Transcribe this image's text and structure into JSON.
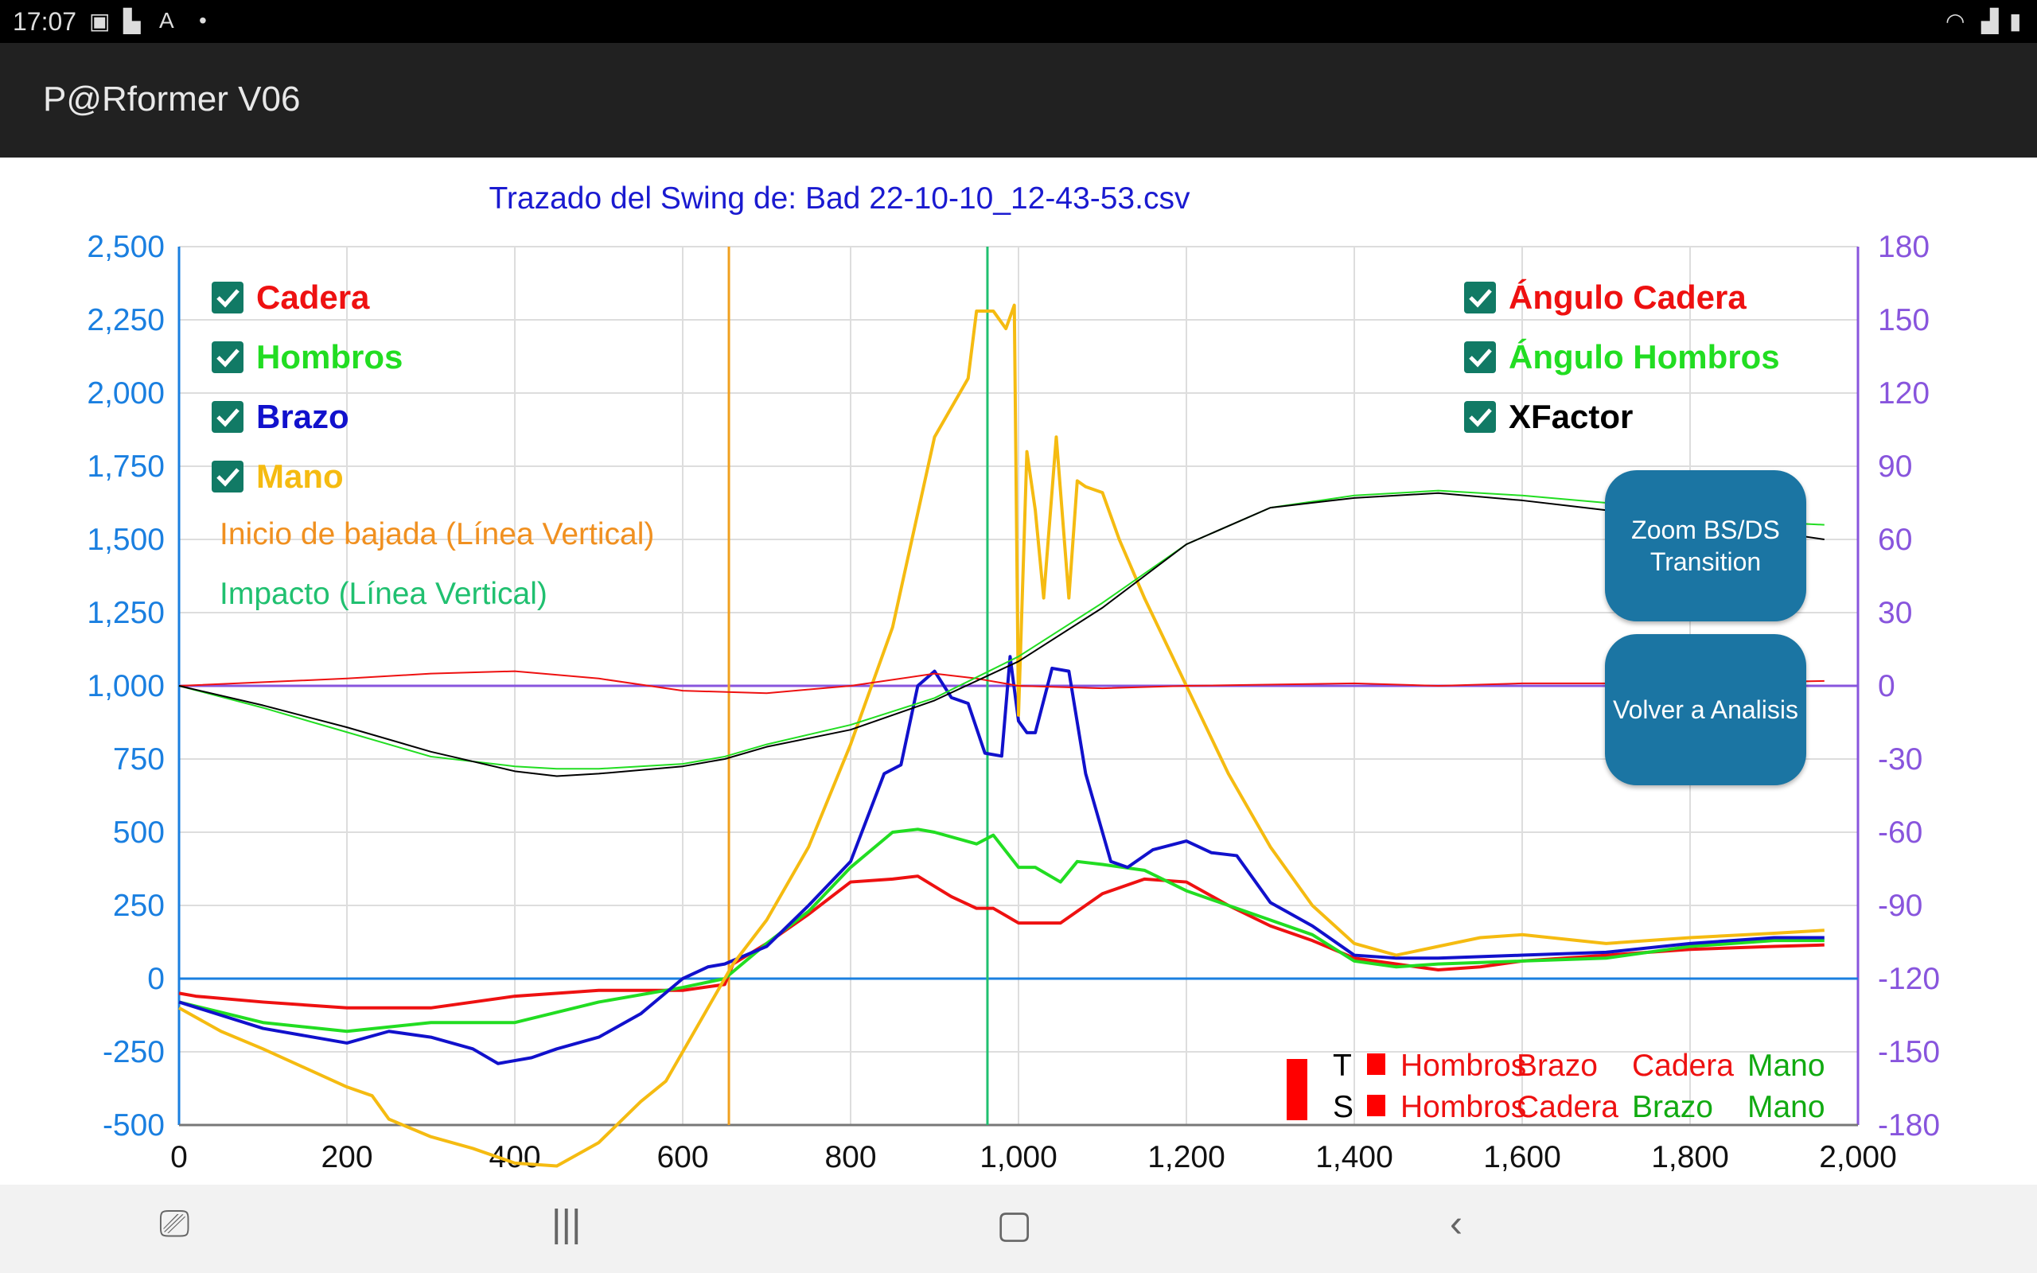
{
  "status_bar": {
    "time": "17:07",
    "icons": [
      "image-icon",
      "screenshot-icon",
      "text-check-icon",
      "dot-icon",
      "wifi-icon",
      "signal-icon",
      "battery-icon"
    ]
  },
  "app_bar": {
    "title": "P@Rformer V06"
  },
  "buttons": {
    "zoom": "Zoom BS/DS Transition",
    "volver": "Volver a Analisis"
  },
  "legend_left": [
    {
      "label": "Cadera",
      "color": "#ee1111",
      "checked": true
    },
    {
      "label": "Hombros",
      "color": "#22dd22",
      "checked": true
    },
    {
      "label": "Brazo",
      "color": "#1111cc",
      "checked": true
    },
    {
      "label": "Mano",
      "color": "#f5bb11",
      "checked": true
    }
  ],
  "legend_right": [
    {
      "label": "Ángulo Cadera",
      "color": "#ee1111",
      "checked": true
    },
    {
      "label": "Ángulo Hombros",
      "color": "#22dd22",
      "checked": true
    },
    {
      "label": "XFactor",
      "color": "#000000",
      "checked": true
    }
  ],
  "annotations": {
    "inicio": "Inicio de bajada (Línea Vertical)",
    "impacto": "Impacto (Línea Vertical)"
  },
  "sequence_table": {
    "rows": [
      {
        "key": "T",
        "items": [
          {
            "t": "Hombros",
            "c": "#ee1111"
          },
          {
            "t": "Brazo",
            "c": "#ee1111"
          },
          {
            "t": "Cadera",
            "c": "#ee1111"
          },
          {
            "t": "Mano",
            "c": "#11aa11"
          }
        ]
      },
      {
        "key": "S",
        "items": [
          {
            "t": "Hombros",
            "c": "#ee1111"
          },
          {
            "t": "Cadera",
            "c": "#ee1111"
          },
          {
            "t": "Brazo",
            "c": "#11aa11"
          },
          {
            "t": "Mano",
            "c": "#11aa11"
          }
        ]
      }
    ]
  },
  "chart_data": {
    "type": "line",
    "title": "Trazado del Swing de: Bad 22-10-10_12-43-53.csv",
    "xlim": [
      0,
      2000
    ],
    "ylim_left": [
      -500,
      2500
    ],
    "ylim_right": [
      -180,
      180
    ],
    "x_ticks": [
      "0",
      "200",
      "400",
      "600",
      "800",
      "1,000",
      "1,200",
      "1,400",
      "1,600",
      "1,800",
      "2,000"
    ],
    "y_ticks_left": [
      "2,500",
      "2,250",
      "2,000",
      "1,750",
      "1,500",
      "1,250",
      "1,000",
      "750",
      "500",
      "250",
      "0",
      "-250",
      "-500"
    ],
    "y_ticks_right": [
      "180",
      "150",
      "120",
      "90",
      "60",
      "30",
      "0",
      "-30",
      "-60",
      "-90",
      "-120",
      "-150",
      "-180"
    ],
    "vertical_lines": [
      {
        "name": "Inicio de bajada",
        "x": 655,
        "color": "#f0a020"
      },
      {
        "name": "Impacto",
        "x": 963,
        "color": "#20c070"
      }
    ],
    "grid": true,
    "series": [
      {
        "name": "Cadera",
        "axis": "left",
        "color": "#ee1111",
        "width": 4,
        "points": [
          [
            0,
            -50
          ],
          [
            20,
            -60
          ],
          [
            100,
            -80
          ],
          [
            200,
            -100
          ],
          [
            300,
            -100
          ],
          [
            400,
            -60
          ],
          [
            500,
            -40
          ],
          [
            600,
            -40
          ],
          [
            650,
            -20
          ],
          [
            660,
            50
          ],
          [
            700,
            120
          ],
          [
            750,
            220
          ],
          [
            800,
            330
          ],
          [
            850,
            340
          ],
          [
            880,
            350
          ],
          [
            920,
            280
          ],
          [
            950,
            240
          ],
          [
            970,
            240
          ],
          [
            1000,
            190
          ],
          [
            1050,
            190
          ],
          [
            1100,
            290
          ],
          [
            1150,
            340
          ],
          [
            1200,
            330
          ],
          [
            1250,
            250
          ],
          [
            1300,
            180
          ],
          [
            1350,
            130
          ],
          [
            1400,
            70
          ],
          [
            1450,
            50
          ],
          [
            1500,
            30
          ],
          [
            1550,
            40
          ],
          [
            1600,
            60
          ],
          [
            1700,
            80
          ],
          [
            1800,
            100
          ],
          [
            1900,
            110
          ],
          [
            1960,
            115
          ]
        ]
      },
      {
        "name": "Hombros",
        "axis": "left",
        "color": "#22dd22",
        "width": 4,
        "points": [
          [
            0,
            -80
          ],
          [
            100,
            -150
          ],
          [
            200,
            -180
          ],
          [
            300,
            -150
          ],
          [
            400,
            -150
          ],
          [
            500,
            -80
          ],
          [
            600,
            -30
          ],
          [
            650,
            0
          ],
          [
            700,
            120
          ],
          [
            750,
            230
          ],
          [
            800,
            380
          ],
          [
            850,
            500
          ],
          [
            880,
            510
          ],
          [
            900,
            500
          ],
          [
            950,
            460
          ],
          [
            970,
            490
          ],
          [
            1000,
            380
          ],
          [
            1020,
            380
          ],
          [
            1050,
            330
          ],
          [
            1070,
            400
          ],
          [
            1100,
            390
          ],
          [
            1150,
            370
          ],
          [
            1200,
            300
          ],
          [
            1250,
            250
          ],
          [
            1300,
            200
          ],
          [
            1350,
            150
          ],
          [
            1400,
            60
          ],
          [
            1450,
            40
          ],
          [
            1500,
            50
          ],
          [
            1600,
            60
          ],
          [
            1700,
            70
          ],
          [
            1800,
            110
          ],
          [
            1900,
            130
          ],
          [
            1960,
            130
          ]
        ]
      },
      {
        "name": "Brazo",
        "axis": "left",
        "color": "#1111cc",
        "width": 4,
        "points": [
          [
            0,
            -80
          ],
          [
            100,
            -170
          ],
          [
            200,
            -220
          ],
          [
            250,
            -180
          ],
          [
            300,
            -200
          ],
          [
            350,
            -240
          ],
          [
            380,
            -290
          ],
          [
            420,
            -270
          ],
          [
            450,
            -240
          ],
          [
            500,
            -200
          ],
          [
            550,
            -120
          ],
          [
            600,
            0
          ],
          [
            630,
            40
          ],
          [
            650,
            50
          ],
          [
            700,
            110
          ],
          [
            750,
            250
          ],
          [
            800,
            400
          ],
          [
            820,
            550
          ],
          [
            840,
            700
          ],
          [
            860,
            730
          ],
          [
            880,
            1000
          ],
          [
            900,
            1050
          ],
          [
            920,
            960
          ],
          [
            940,
            940
          ],
          [
            960,
            770
          ],
          [
            980,
            760
          ],
          [
            990,
            1100
          ],
          [
            1000,
            880
          ],
          [
            1010,
            840
          ],
          [
            1020,
            840
          ],
          [
            1040,
            1060
          ],
          [
            1060,
            1050
          ],
          [
            1080,
            700
          ],
          [
            1110,
            400
          ],
          [
            1130,
            380
          ],
          [
            1160,
            440
          ],
          [
            1200,
            470
          ],
          [
            1230,
            430
          ],
          [
            1260,
            420
          ],
          [
            1300,
            260
          ],
          [
            1350,
            180
          ],
          [
            1400,
            80
          ],
          [
            1450,
            70
          ],
          [
            1500,
            70
          ],
          [
            1600,
            80
          ],
          [
            1700,
            90
          ],
          [
            1800,
            120
          ],
          [
            1900,
            140
          ],
          [
            1960,
            140
          ]
        ]
      },
      {
        "name": "Mano",
        "axis": "left",
        "color": "#f5bb11",
        "width": 4,
        "points": [
          [
            0,
            -100
          ],
          [
            50,
            -180
          ],
          [
            100,
            -240
          ],
          [
            200,
            -370
          ],
          [
            230,
            -400
          ],
          [
            250,
            -480
          ],
          [
            300,
            -540
          ],
          [
            350,
            -580
          ],
          [
            400,
            -630
          ],
          [
            450,
            -640
          ],
          [
            500,
            -560
          ],
          [
            550,
            -420
          ],
          [
            580,
            -350
          ],
          [
            600,
            -250
          ],
          [
            630,
            -100
          ],
          [
            660,
            50
          ],
          [
            700,
            200
          ],
          [
            750,
            450
          ],
          [
            800,
            800
          ],
          [
            850,
            1200
          ],
          [
            900,
            1850
          ],
          [
            920,
            1950
          ],
          [
            940,
            2050
          ],
          [
            950,
            2280
          ],
          [
            970,
            2280
          ],
          [
            985,
            2220
          ],
          [
            995,
            2300
          ],
          [
            1000,
            900
          ],
          [
            1010,
            1800
          ],
          [
            1020,
            1600
          ],
          [
            1030,
            1300
          ],
          [
            1045,
            1850
          ],
          [
            1060,
            1300
          ],
          [
            1070,
            1700
          ],
          [
            1080,
            1680
          ],
          [
            1100,
            1660
          ],
          [
            1120,
            1500
          ],
          [
            1150,
            1300
          ],
          [
            1200,
            1000
          ],
          [
            1250,
            700
          ],
          [
            1300,
            450
          ],
          [
            1350,
            250
          ],
          [
            1400,
            120
          ],
          [
            1450,
            80
          ],
          [
            1500,
            110
          ],
          [
            1550,
            140
          ],
          [
            1600,
            150
          ],
          [
            1700,
            120
          ],
          [
            1800,
            140
          ],
          [
            1900,
            155
          ],
          [
            1960,
            165
          ]
        ]
      },
      {
        "name": "Ángulo Cadera",
        "axis": "right",
        "color": "#ee1111",
        "width": 2,
        "points": [
          [
            0,
            0
          ],
          [
            200,
            3
          ],
          [
            300,
            5
          ],
          [
            400,
            6
          ],
          [
            500,
            3
          ],
          [
            600,
            -2
          ],
          [
            700,
            -3
          ],
          [
            800,
            0
          ],
          [
            900,
            5
          ],
          [
            950,
            3
          ],
          [
            1000,
            0
          ],
          [
            1100,
            -1
          ],
          [
            1200,
            0
          ],
          [
            1400,
            1
          ],
          [
            1500,
            0
          ],
          [
            1600,
            1
          ],
          [
            1800,
            1
          ],
          [
            1960,
            2
          ]
        ]
      },
      {
        "name": "Ángulo Hombros",
        "axis": "right",
        "color": "#22dd22",
        "width": 2,
        "points": [
          [
            0,
            0
          ],
          [
            100,
            -9
          ],
          [
            200,
            -19
          ],
          [
            300,
            -29
          ],
          [
            400,
            -33
          ],
          [
            450,
            -34
          ],
          [
            500,
            -34
          ],
          [
            600,
            -32
          ],
          [
            650,
            -29
          ],
          [
            700,
            -24
          ],
          [
            800,
            -16
          ],
          [
            900,
            -5
          ],
          [
            1000,
            12
          ],
          [
            1100,
            34
          ],
          [
            1200,
            58
          ],
          [
            1300,
            73
          ],
          [
            1400,
            78
          ],
          [
            1500,
            80
          ],
          [
            1600,
            78
          ],
          [
            1700,
            75
          ],
          [
            1800,
            72
          ],
          [
            1900,
            67
          ],
          [
            1960,
            66
          ]
        ]
      },
      {
        "name": "XFactor",
        "axis": "right",
        "color": "#000000",
        "width": 2,
        "points": [
          [
            0,
            0
          ],
          [
            100,
            -8
          ],
          [
            200,
            -17
          ],
          [
            300,
            -27
          ],
          [
            400,
            -35
          ],
          [
            450,
            -37
          ],
          [
            500,
            -36
          ],
          [
            600,
            -33
          ],
          [
            650,
            -30
          ],
          [
            700,
            -25
          ],
          [
            800,
            -18
          ],
          [
            900,
            -6
          ],
          [
            1000,
            10
          ],
          [
            1100,
            32
          ],
          [
            1200,
            58
          ],
          [
            1300,
            73
          ],
          [
            1400,
            77
          ],
          [
            1500,
            79
          ],
          [
            1600,
            76
          ],
          [
            1700,
            72
          ],
          [
            1800,
            68
          ],
          [
            1900,
            63
          ],
          [
            1960,
            60
          ]
        ]
      }
    ]
  }
}
